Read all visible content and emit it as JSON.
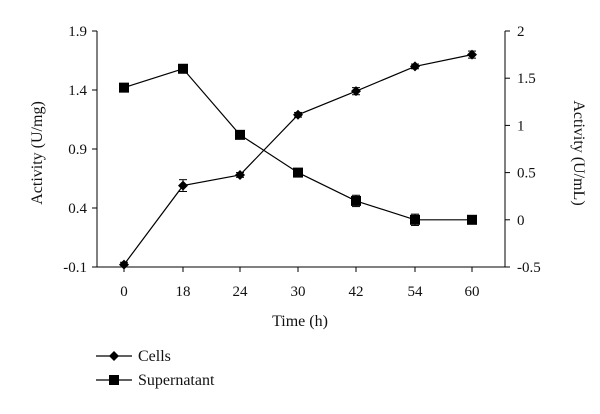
{
  "chart_data": {
    "type": "line",
    "categories": [
      "0",
      "18",
      "24",
      "30",
      "42",
      "54",
      "60"
    ],
    "xlabel": "Time (h)",
    "y_left": {
      "label": "Activity (U/mg)",
      "lim": [
        -0.1,
        1.9
      ],
      "ticks": [
        "-0.1",
        "0.4",
        "0.9",
        "1.4",
        "1.9"
      ],
      "tick_values": [
        -0.1,
        0.4,
        0.9,
        1.4,
        1.9
      ]
    },
    "y_right": {
      "label": "Activity (U/mL)",
      "lim": [
        -0.5,
        2
      ],
      "ticks": [
        "-0.5",
        "0",
        "0.5",
        "1",
        "1.5",
        "2"
      ],
      "tick_values": [
        -0.5,
        0,
        0.5,
        1,
        1.5,
        2
      ]
    },
    "series": [
      {
        "name": "Cells",
        "axis": "left",
        "marker": "diamond",
        "values": [
          -0.08,
          0.59,
          0.68,
          1.19,
          1.39,
          1.6,
          1.7
        ],
        "errors": [
          0.02,
          0.05,
          0.02,
          0.02,
          0.03,
          0.02,
          0.03
        ]
      },
      {
        "name": "Supernatant",
        "axis": "right",
        "marker": "square",
        "values": [
          1.4,
          1.6,
          0.9,
          0.5,
          0.2,
          0.0,
          0.0
        ],
        "errors": [
          0.0,
          0.0,
          0.0,
          0.0,
          0.06,
          0.06,
          0.0
        ]
      }
    ],
    "legend": {
      "placement": "bottom-left",
      "items": [
        "Cells",
        "Supernatant"
      ]
    },
    "grid": false,
    "colors": {
      "line": "#000000",
      "background": "#ffffff"
    }
  }
}
